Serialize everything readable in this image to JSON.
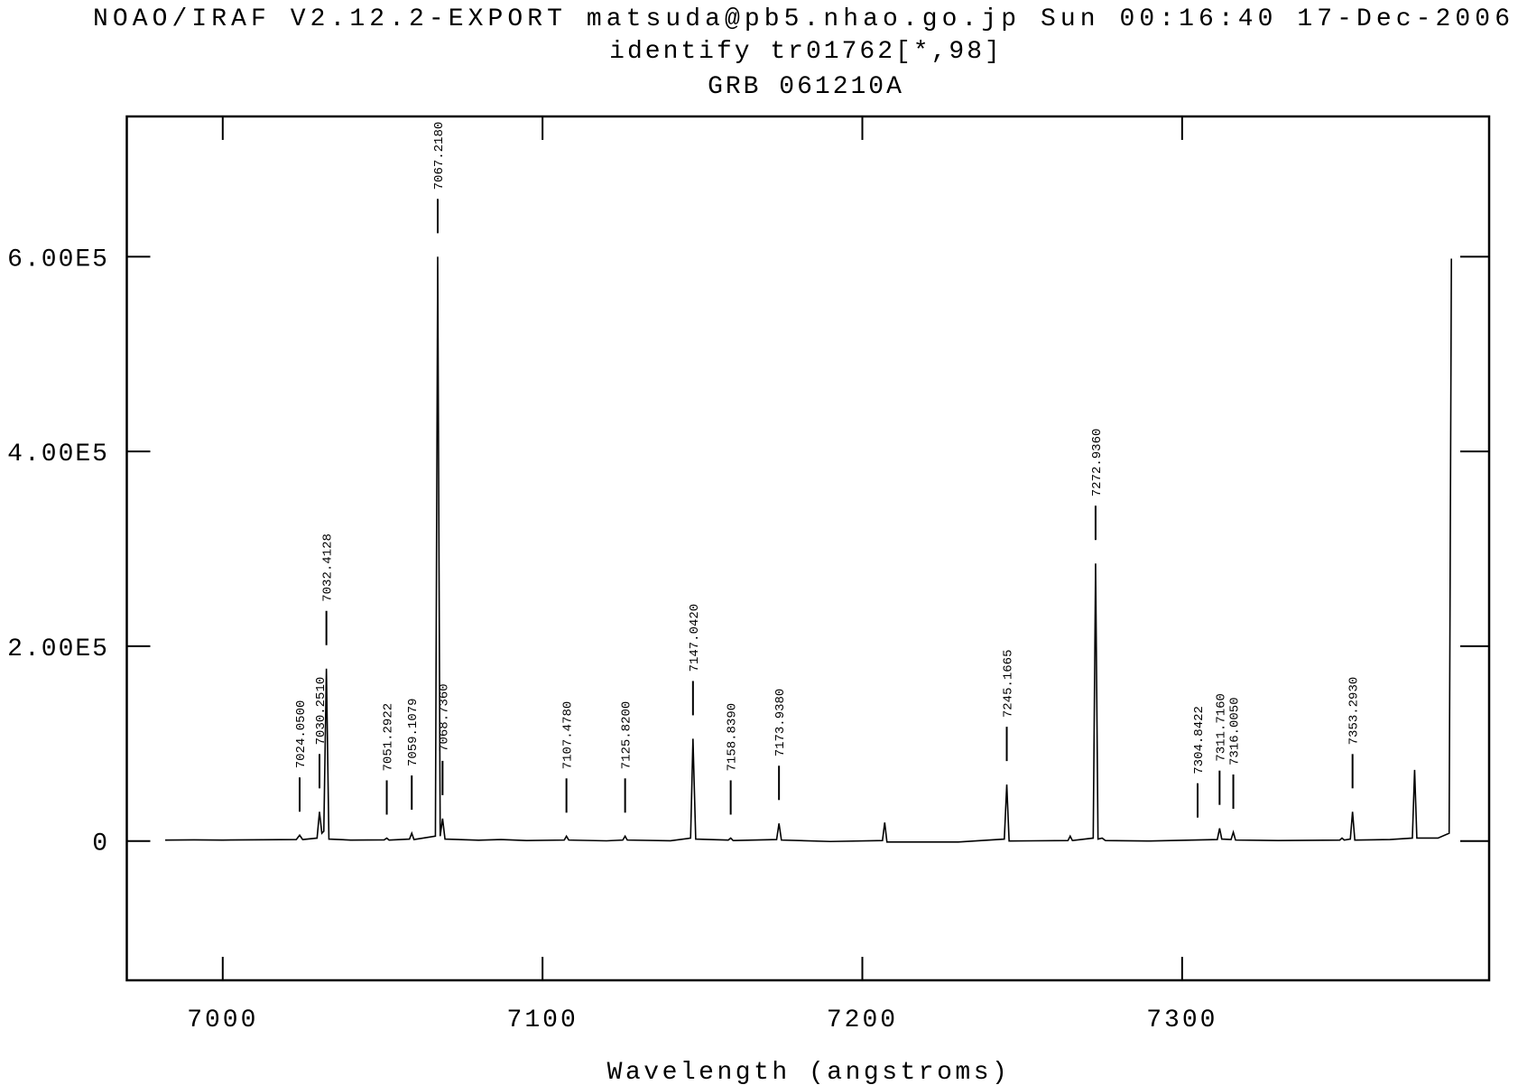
{
  "chart_data": {
    "type": "line",
    "header": "NOAO/IRAF V2.12.2-EXPORT matsuda@pb5.nhao.go.jp Sun 00:16:40 17-Dec-2006",
    "title": "identify tr01762[*,98]",
    "subtitle": "GRB 061210A",
    "xlabel": "Wavelength (angstroms)",
    "color": "#000000",
    "xlim": [
      6970,
      7396
    ],
    "ylim": [
      -143000,
      744000
    ],
    "xticks": [
      7000,
      7100,
      7200,
      7300
    ],
    "yticks": [
      0,
      {
        "value": 200000,
        "label": "2.00E5"
      },
      {
        "value": 400000,
        "label": "4.00E5"
      },
      {
        "value": 600000,
        "label": "6.00E5"
      }
    ],
    "x": [
      6982,
      6991,
      7000,
      7023,
      7024.05,
      7025,
      7029.5,
      7030.25,
      7031,
      7031.6,
      7032.41,
      7033.2,
      7040,
      7050.5,
      7051.29,
      7052,
      7058.4,
      7059.11,
      7059.8,
      7066.5,
      7067.22,
      7068,
      7068.74,
      7069.5,
      7080,
      7087,
      7095,
      7106.8,
      7107.48,
      7108.2,
      7120,
      7125.1,
      7125.82,
      7126.5,
      7140,
      7146.3,
      7147.04,
      7147.9,
      7158.1,
      7158.84,
      7159.6,
      7173.2,
      7173.94,
      7174.7,
      7190,
      7206.3,
      7207,
      7207.7,
      7230,
      7244.4,
      7245.17,
      7245.9,
      7264.3,
      7265,
      7265.7,
      7272.2,
      7272.94,
      7273.7,
      7275,
      7276,
      7290,
      7311,
      7311.72,
      7312.4,
      7315.3,
      7316.01,
      7316.7,
      7330,
      7349.3,
      7350,
      7350.7,
      7352.6,
      7353.29,
      7354,
      7365,
      7372,
      7372.7,
      7373.4,
      7380,
      7383.5,
      7384.2
    ],
    "values": [
      1000,
      1200,
      1000,
      1500,
      6000,
      1500,
      3000,
      30000,
      8000,
      10000,
      177000,
      2000,
      1000,
      1200,
      3000,
      1000,
      2000,
      8000,
      1500,
      5000,
      600000,
      5000,
      23000,
      2000,
      800,
      1500,
      500,
      1000,
      5000,
      1000,
      200,
      1000,
      5000,
      1000,
      300,
      3000,
      105000,
      2000,
      1000,
      3000,
      500,
      1500,
      18000,
      1000,
      -500,
      500,
      19000,
      -1000,
      -1000,
      2000,
      58000,
      0,
      500,
      5000,
      500,
      3000,
      285000,
      2000,
      3000,
      500,
      0,
      1500,
      13000,
      2000,
      1500,
      9000,
      1000,
      500,
      1000,
      3000,
      1000,
      2000,
      30000,
      1000,
      1500,
      3000,
      73000,
      3000,
      3000,
      8000,
      598000
    ],
    "line_ids": [
      {
        "value": 7024.05,
        "label": "7024.0500"
      },
      {
        "value": 7030.251,
        "label": "7030.2510"
      },
      {
        "value": 7032.4128,
        "label": "7032.4128"
      },
      {
        "value": 7051.2922,
        "label": "7051.2922"
      },
      {
        "value": 7059.1079,
        "label": "7059.1079"
      },
      {
        "value": 7067.218,
        "label": "7067.2180"
      },
      {
        "value": 7068.736,
        "label": "7068.7360"
      },
      {
        "value": 7107.478,
        "label": "7107.4780"
      },
      {
        "value": 7125.82,
        "label": "7125.8200"
      },
      {
        "value": 7147.042,
        "label": "7147.0420"
      },
      {
        "value": 7158.839,
        "label": "7158.8390"
      },
      {
        "value": 7173.938,
        "label": "7173.9380"
      },
      {
        "value": 7245.1665,
        "label": "7245.1665"
      },
      {
        "value": 7272.936,
        "label": "7272.9360"
      },
      {
        "value": 7304.8422,
        "label": "7304.8422"
      },
      {
        "value": 7311.716,
        "label": "7311.7160"
      },
      {
        "value": 7316.005,
        "label": "7316.0050"
      },
      {
        "value": 7353.293,
        "label": "7353.2930"
      }
    ]
  }
}
